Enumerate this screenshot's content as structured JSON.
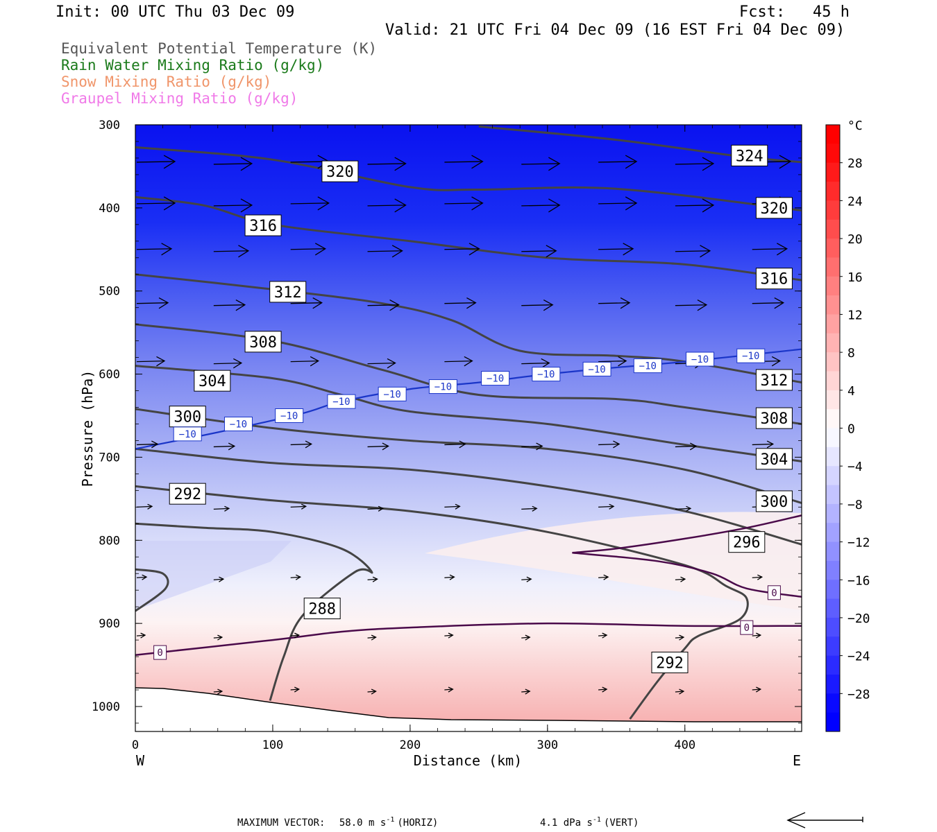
{
  "header": {
    "init": "Init: 00 UTC Thu 03 Dec 09",
    "fcst": "Fcst:   45 h",
    "valid": "Valid: 21 UTC Fri 04 Dec 09 (16 EST Fri 04 Dec 09)"
  },
  "legend": [
    {
      "label": "Equivalent Potential Temperature (K)",
      "color": "#555555"
    },
    {
      "label": "Rain Water Mixing Ratio (g/kg)",
      "color": "#1a7a1a"
    },
    {
      "label": "Snow Mixing Ratio (g/kg)",
      "color": "#f0956a"
    },
    {
      "label": "Graupel Mixing Ratio (g/kg)",
      "color": "#f07ae8"
    }
  ],
  "chart_data": {
    "type": "heatmap",
    "ylabel": "Pressure (hPa)",
    "xlabel": "Distance (km)",
    "x_end_labels": [
      "W",
      "E"
    ],
    "xlim": [
      0,
      485
    ],
    "ylim": [
      1030,
      300
    ],
    "x_ticks": [
      0,
      100,
      200,
      300,
      400
    ],
    "y_ticks": [
      300,
      400,
      500,
      600,
      700,
      800,
      900,
      1000
    ],
    "colorbar": {
      "unit": "°C",
      "range": [
        -32,
        32
      ],
      "tick_labels": [
        "28",
        "24",
        "20",
        "16",
        "12",
        "8",
        "4",
        "0",
        "−4",
        "−8",
        "−12",
        "−16",
        "−20",
        "−24",
        "−28"
      ],
      "tick_values": [
        28,
        24,
        20,
        16,
        12,
        8,
        4,
        0,
        -4,
        -8,
        -12,
        -16,
        -20,
        -24,
        -28
      ]
    },
    "theta_e_contours": [
      {
        "level": 288,
        "label": "288",
        "points": [
          [
            0,
            835
          ],
          [
            20,
            840
          ],
          [
            22,
            858
          ],
          [
            0,
            885
          ]
        ]
      },
      {
        "level": 288,
        "label": "288",
        "points": [
          [
            98,
            993
          ],
          [
            108,
            940
          ],
          [
            122,
            890
          ],
          [
            160,
            838
          ],
          [
            172,
            838
          ],
          [
            150,
            810
          ],
          [
            100,
            790
          ],
          [
            50,
            785
          ],
          [
            0,
            780
          ]
        ]
      },
      {
        "level": 292,
        "label": "292",
        "points": [
          [
            0,
            735
          ],
          [
            100,
            752
          ],
          [
            200,
            765
          ],
          [
            300,
            790
          ],
          [
            400,
            830
          ],
          [
            430,
            855
          ],
          [
            445,
            870
          ],
          [
            440,
            895
          ],
          [
            410,
            915
          ],
          [
            400,
            930
          ],
          [
            380,
            970
          ],
          [
            360,
            1015
          ]
        ]
      },
      {
        "level": 296,
        "label": "296",
        "points": [
          [
            0,
            690
          ],
          [
            100,
            707
          ],
          [
            200,
            715
          ],
          [
            300,
            735
          ],
          [
            400,
            765
          ],
          [
            485,
            805
          ]
        ]
      },
      {
        "level": 300,
        "label": "300",
        "points": [
          [
            0,
            642
          ],
          [
            100,
            665
          ],
          [
            200,
            680
          ],
          [
            300,
            690
          ],
          [
            400,
            715
          ],
          [
            485,
            755
          ]
        ]
      },
      {
        "level": 304,
        "label": "304",
        "points": [
          [
            0,
            590
          ],
          [
            100,
            605
          ],
          [
            150,
            625
          ],
          [
            200,
            645
          ],
          [
            300,
            660
          ],
          [
            400,
            685
          ],
          [
            485,
            705
          ]
        ]
      },
      {
        "level": 308,
        "label": "308",
        "points": [
          [
            0,
            540
          ],
          [
            100,
            560
          ],
          [
            180,
            595
          ],
          [
            250,
            625
          ],
          [
            350,
            630
          ],
          [
            400,
            640
          ],
          [
            485,
            660
          ]
        ]
      },
      {
        "level": 312,
        "label": "312",
        "points": [
          [
            0,
            480
          ],
          [
            100,
            498
          ],
          [
            180,
            515
          ],
          [
            230,
            535
          ],
          [
            280,
            572
          ],
          [
            350,
            578
          ],
          [
            400,
            585
          ],
          [
            485,
            610
          ]
        ]
      },
      {
        "level": 316,
        "label": "316",
        "points": [
          [
            0,
            387
          ],
          [
            50,
            397
          ],
          [
            100,
            420
          ],
          [
            200,
            440
          ],
          [
            300,
            460
          ],
          [
            400,
            468
          ],
          [
            485,
            487
          ]
        ]
      },
      {
        "level": 320,
        "label": "320",
        "points": [
          [
            0,
            327
          ],
          [
            100,
            342
          ],
          [
            200,
            375
          ],
          [
            250,
            378
          ],
          [
            350,
            377
          ],
          [
            485,
            403
          ]
        ]
      },
      {
        "level": 324,
        "label": "324",
        "points": [
          [
            250,
            302
          ],
          [
            350,
            318
          ],
          [
            440,
            338
          ],
          [
            485,
            345
          ]
        ]
      }
    ],
    "isotherm_minus10": {
      "label": "−10",
      "points": [
        [
          0,
          690
        ],
        [
          60,
          670
        ],
        [
          120,
          648
        ],
        [
          150,
          633
        ],
        [
          200,
          618
        ],
        [
          250,
          610
        ],
        [
          300,
          600
        ],
        [
          350,
          592
        ],
        [
          400,
          585
        ],
        [
          485,
          570
        ]
      ]
    },
    "isotherm_zero": [
      {
        "label": "0",
        "points": [
          [
            0,
            938
          ],
          [
            100,
            920
          ],
          [
            150,
            910
          ],
          [
            200,
            905
          ],
          [
            300,
            900
          ],
          [
            400,
            903
          ],
          [
            485,
            903
          ]
        ]
      },
      {
        "label": "0",
        "points": [
          [
            318,
            815
          ],
          [
            350,
            810
          ],
          [
            400,
            798
          ],
          [
            445,
            785
          ],
          [
            485,
            770
          ]
        ]
      },
      {
        "label": "0",
        "points": [
          [
            318,
            815
          ],
          [
            380,
            825
          ],
          [
            420,
            840
          ],
          [
            445,
            858
          ],
          [
            485,
            868
          ]
        ]
      }
    ],
    "contour_labels": [
      {
        "text": "324",
        "x": 447,
        "y": 337
      },
      {
        "text": "320",
        "x": 149,
        "y": 356
      },
      {
        "text": "320",
        "x": 465,
        "y": 400
      },
      {
        "text": "316",
        "x": 93,
        "y": 421
      },
      {
        "text": "316",
        "x": 465,
        "y": 485
      },
      {
        "text": "312",
        "x": 111,
        "y": 501
      },
      {
        "text": "312",
        "x": 465,
        "y": 607
      },
      {
        "text": "308",
        "x": 93,
        "y": 561
      },
      {
        "text": "308",
        "x": 465,
        "y": 653
      },
      {
        "text": "304",
        "x": 56,
        "y": 608
      },
      {
        "text": "304",
        "x": 465,
        "y": 702
      },
      {
        "text": "300",
        "x": 38,
        "y": 651
      },
      {
        "text": "300",
        "x": 465,
        "y": 753
      },
      {
        "text": "296",
        "x": 445,
        "y": 802
      },
      {
        "text": "292",
        "x": 38,
        "y": 744
      },
      {
        "text": "292",
        "x": 389,
        "y": 947
      },
      {
        "text": "288",
        "x": 136,
        "y": 882
      }
    ],
    "isotherm_labels": [
      {
        "text": "−10",
        "x": 38,
        "y": 672
      },
      {
        "text": "−10",
        "x": 75,
        "y": 660
      },
      {
        "text": "−10",
        "x": 112,
        "y": 650
      },
      {
        "text": "−10",
        "x": 150,
        "y": 633
      },
      {
        "text": "−10",
        "x": 187,
        "y": 624
      },
      {
        "text": "−10",
        "x": 224,
        "y": 615
      },
      {
        "text": "−10",
        "x": 262,
        "y": 605
      },
      {
        "text": "−10",
        "x": 299,
        "y": 600
      },
      {
        "text": "−10",
        "x": 336,
        "y": 594
      },
      {
        "text": "−10",
        "x": 373,
        "y": 590
      },
      {
        "text": "−10",
        "x": 411,
        "y": 582
      },
      {
        "text": "−10",
        "x": 448,
        "y": 578
      },
      {
        "text": "0",
        "x": 18,
        "y": 935
      },
      {
        "text": "0",
        "x": 445,
        "y": 905
      },
      {
        "text": "0",
        "x": 465,
        "y": 863
      }
    ]
  },
  "footer": {
    "max_vector_label": "MAXIMUM VECTOR:",
    "horiz_value": "58.0 m s",
    "horiz_exp": "-1",
    "horiz_suffix": "(HORIZ)",
    "vert_value": "4.1 dPa s",
    "vert_exp": "-1",
    "vert_suffix": "(VERT)"
  },
  "colors": {
    "cold": "#0000ff",
    "warm": "#ff0000",
    "theta_e": "#444444",
    "isotherm_minus10": "#1a35c8",
    "isotherm_zero": "#4a0a4a"
  }
}
